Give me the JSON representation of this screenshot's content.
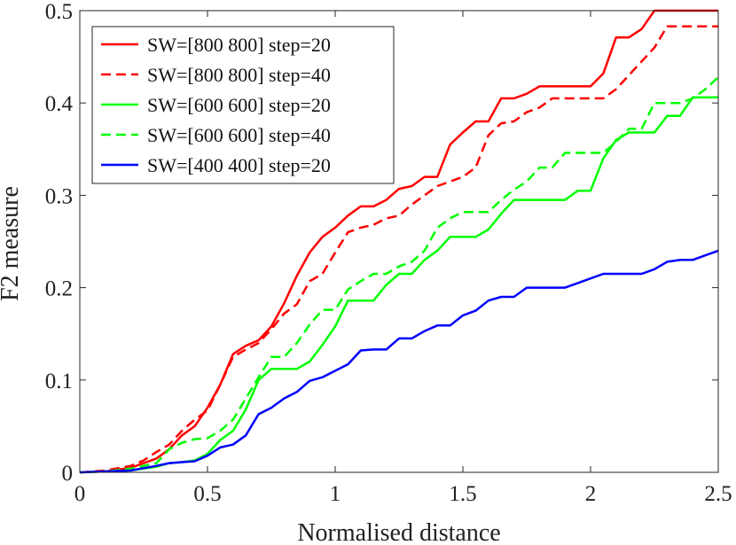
{
  "chart_data": {
    "type": "line",
    "title": "",
    "xlabel": "Normalised distance",
    "ylabel": "F2 measure",
    "xlim": [
      0,
      2.5
    ],
    "ylim": [
      0,
      0.5
    ],
    "xticks": [
      0,
      0.5,
      1,
      1.5,
      2,
      2.5
    ],
    "xtick_labels": [
      "0",
      "0.5",
      "1",
      "1.5",
      "2",
      "2.5"
    ],
    "yticks": [
      0,
      0.1,
      0.2,
      0.3,
      0.4,
      0.5
    ],
    "ytick_labels": [
      "0",
      "0.1",
      "0.2",
      "0.3",
      "0.4",
      "0.5"
    ],
    "grid": false,
    "legend_position": "top-left",
    "series": [
      {
        "name": "SW=[800 800] step=20",
        "color": "#ff0000",
        "dash": "solid",
        "x": [
          0,
          0.1,
          0.2,
          0.3,
          0.35,
          0.4,
          0.45,
          0.5,
          0.55,
          0.6,
          0.65,
          0.7,
          0.75,
          0.8,
          0.85,
          0.9,
          0.95,
          1.0,
          1.05,
          1.1,
          1.15,
          1.2,
          1.25,
          1.3,
          1.35,
          1.4,
          1.45,
          1.5,
          1.55,
          1.6,
          1.65,
          1.7,
          1.75,
          1.8,
          1.85,
          1.9,
          1.95,
          2.0,
          2.05,
          2.1,
          2.15,
          2.2,
          2.25,
          2.3,
          2.35,
          2.4,
          2.45,
          2.5
        ],
        "y": [
          0,
          0.001,
          0.005,
          0.015,
          0.025,
          0.04,
          0.05,
          0.07,
          0.095,
          0.128,
          0.137,
          0.143,
          0.158,
          0.183,
          0.213,
          0.238,
          0.255,
          0.265,
          0.278,
          0.288,
          0.288,
          0.295,
          0.307,
          0.31,
          0.32,
          0.32,
          0.355,
          0.368,
          0.38,
          0.38,
          0.405,
          0.405,
          0.41,
          0.418,
          0.418,
          0.418,
          0.418,
          0.418,
          0.432,
          0.471,
          0.471,
          0.48,
          0.5,
          0.5,
          0.5,
          0.5,
          0.5,
          0.5
        ]
      },
      {
        "name": "SW=[800 800] step=40",
        "color": "#ff0000",
        "dash": "dashed",
        "x": [
          0,
          0.1,
          0.2,
          0.25,
          0.3,
          0.35,
          0.4,
          0.45,
          0.5,
          0.55,
          0.6,
          0.65,
          0.7,
          0.75,
          0.8,
          0.85,
          0.9,
          0.95,
          1.0,
          1.05,
          1.1,
          1.15,
          1.2,
          1.25,
          1.3,
          1.35,
          1.4,
          1.45,
          1.5,
          1.55,
          1.6,
          1.65,
          1.7,
          1.75,
          1.8,
          1.85,
          1.9,
          1.95,
          2.0,
          2.05,
          2.1,
          2.15,
          2.2,
          2.25,
          2.3,
          2.35,
          2.4,
          2.45,
          2.5
        ],
        "y": [
          0,
          0.002,
          0.007,
          0.013,
          0.022,
          0.03,
          0.045,
          0.057,
          0.067,
          0.095,
          0.125,
          0.133,
          0.14,
          0.155,
          0.172,
          0.182,
          0.207,
          0.215,
          0.238,
          0.26,
          0.265,
          0.268,
          0.275,
          0.278,
          0.29,
          0.3,
          0.31,
          0.315,
          0.32,
          0.33,
          0.365,
          0.378,
          0.38,
          0.39,
          0.395,
          0.405,
          0.405,
          0.405,
          0.405,
          0.405,
          0.415,
          0.43,
          0.445,
          0.46,
          0.483,
          0.483,
          0.483,
          0.483,
          0.483
        ]
      },
      {
        "name": "SW=[600 600] step=20",
        "color": "#00ff00",
        "dash": "solid",
        "x": [
          0,
          0.1,
          0.2,
          0.3,
          0.35,
          0.4,
          0.45,
          0.5,
          0.55,
          0.6,
          0.65,
          0.7,
          0.75,
          0.8,
          0.85,
          0.9,
          0.95,
          1.0,
          1.05,
          1.1,
          1.15,
          1.2,
          1.25,
          1.3,
          1.35,
          1.4,
          1.45,
          1.5,
          1.55,
          1.6,
          1.65,
          1.7,
          1.75,
          1.8,
          1.85,
          1.9,
          1.95,
          2.0,
          2.05,
          2.1,
          2.15,
          2.2,
          2.25,
          2.3,
          2.35,
          2.4,
          2.45,
          2.5
        ],
        "y": [
          0,
          0.001,
          0.002,
          0.006,
          0.01,
          0.011,
          0.013,
          0.02,
          0.035,
          0.045,
          0.068,
          0.1,
          0.112,
          0.112,
          0.112,
          0.12,
          0.138,
          0.158,
          0.186,
          0.186,
          0.186,
          0.203,
          0.215,
          0.215,
          0.23,
          0.24,
          0.255,
          0.255,
          0.255,
          0.263,
          0.28,
          0.295,
          0.295,
          0.295,
          0.295,
          0.295,
          0.305,
          0.305,
          0.34,
          0.36,
          0.368,
          0.368,
          0.368,
          0.386,
          0.386,
          0.406,
          0.406,
          0.406
        ]
      },
      {
        "name": "SW=[600 600] step=40",
        "color": "#00ff00",
        "dash": "dashed",
        "x": [
          0,
          0.1,
          0.2,
          0.3,
          0.35,
          0.4,
          0.45,
          0.5,
          0.55,
          0.6,
          0.65,
          0.7,
          0.75,
          0.8,
          0.85,
          0.9,
          0.95,
          1.0,
          1.05,
          1.1,
          1.15,
          1.2,
          1.25,
          1.3,
          1.35,
          1.4,
          1.45,
          1.5,
          1.55,
          1.6,
          1.65,
          1.7,
          1.75,
          1.8,
          1.85,
          1.9,
          1.95,
          2.0,
          2.05,
          2.1,
          2.15,
          2.2,
          2.25,
          2.3,
          2.35,
          2.4,
          2.45,
          2.5
        ],
        "y": [
          0,
          0.001,
          0.004,
          0.01,
          0.025,
          0.032,
          0.036,
          0.037,
          0.045,
          0.057,
          0.08,
          0.103,
          0.125,
          0.125,
          0.14,
          0.16,
          0.176,
          0.176,
          0.198,
          0.207,
          0.215,
          0.215,
          0.223,
          0.228,
          0.24,
          0.265,
          0.275,
          0.282,
          0.282,
          0.282,
          0.295,
          0.306,
          0.315,
          0.33,
          0.33,
          0.346,
          0.346,
          0.346,
          0.346,
          0.358,
          0.372,
          0.372,
          0.4,
          0.4,
          0.4,
          0.405,
          0.415,
          0.428
        ]
      },
      {
        "name": "SW=[400 400] step=20",
        "color": "#0000ff",
        "dash": "solid",
        "x": [
          0,
          0.1,
          0.2,
          0.3,
          0.35,
          0.4,
          0.45,
          0.5,
          0.55,
          0.6,
          0.65,
          0.7,
          0.75,
          0.8,
          0.85,
          0.9,
          0.95,
          1.0,
          1.05,
          1.1,
          1.15,
          1.2,
          1.25,
          1.3,
          1.35,
          1.4,
          1.45,
          1.5,
          1.55,
          1.6,
          1.65,
          1.7,
          1.75,
          1.8,
          1.85,
          1.9,
          1.95,
          2.0,
          2.05,
          2.1,
          2.15,
          2.2,
          2.25,
          2.3,
          2.35,
          2.4,
          2.45,
          2.5
        ],
        "y": [
          0,
          0.001,
          0.002,
          0.007,
          0.01,
          0.011,
          0.012,
          0.018,
          0.027,
          0.03,
          0.04,
          0.063,
          0.07,
          0.08,
          0.087,
          0.099,
          0.103,
          0.11,
          0.117,
          0.132,
          0.133,
          0.133,
          0.145,
          0.145,
          0.153,
          0.159,
          0.159,
          0.17,
          0.175,
          0.186,
          0.19,
          0.19,
          0.2,
          0.2,
          0.2,
          0.2,
          0.205,
          0.21,
          0.215,
          0.215,
          0.215,
          0.215,
          0.22,
          0.228,
          0.23,
          0.23,
          0.235,
          0.24
        ]
      }
    ]
  }
}
